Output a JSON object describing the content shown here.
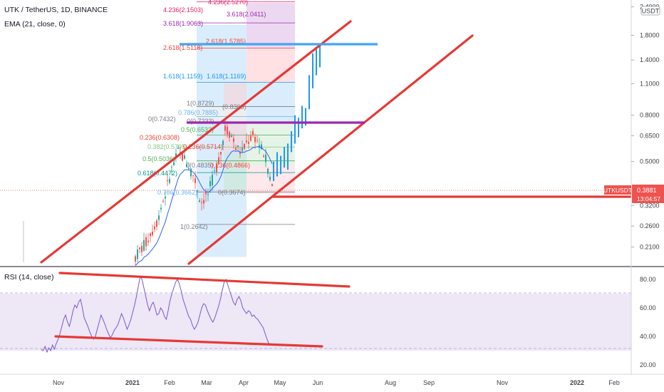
{
  "header": {
    "symbol_line": "UTK / TetherUS, 1D, BINANCE",
    "ema_line": "EMA (21, close, 0)",
    "rsi_line": "RSI (14, close)",
    "currency_badge": "USDT"
  },
  "price_badge": {
    "symbol": "UTKUSDT",
    "price": "0.3881",
    "countdown": "13:04:57",
    "color": "#ef5350"
  },
  "colors": {
    "up": "#26a69a",
    "down": "#ef5350",
    "forecast": "#2196f3",
    "trendline": "#e53935",
    "ema": "#2962ff",
    "rsi": "#7e57c2",
    "rsi_band": "#ede7f6",
    "purple_level": "#9c27b0",
    "blue_level": "#42a5f5"
  },
  "chart_data": [
    {
      "type": "candlestick",
      "title": "UTK / TetherUS, 1D, BINANCE",
      "y_scale": "log",
      "ylim": [
        0.18,
        2.5
      ],
      "x_ticks": [
        "Nov",
        "2021",
        "Feb",
        "Mar",
        "Apr",
        "May",
        "Jun",
        "Aug",
        "Sep",
        "Nov",
        "2022",
        "Feb"
      ],
      "y_ticks": [
        "2.4000",
        "1.8000",
        "1.4000",
        "1.1000",
        "0.8000",
        "0.6500",
        "0.5000",
        "0.3200",
        "0.2600",
        "0.2100"
      ],
      "last_price": 0.3881,
      "series": [
        {
          "name": "EMA (21, close, 0)",
          "kind": "ema",
          "period": 21
        },
        {
          "name": "UTKUSDT",
          "kind": "candles",
          "note": "rally from ~0.19 (Jan 2021) to ~0.87 (late Mar 2021), pullback to ~0.37 (late Apr 2021)"
        }
      ],
      "fib_labels": [
        {
          "text": "4.236(2.5270)",
          "color": "#e91e63"
        },
        {
          "text": "3.618(2.0411)",
          "color": "#9c27b0"
        },
        {
          "text": "4.236(2.1503)",
          "color": "#e91e63"
        },
        {
          "text": "3.618(1.9063)",
          "color": "#9c27b0"
        },
        {
          "text": "2.618(1.5785)",
          "color": "#f44336"
        },
        {
          "text": "2.618(1.5118)",
          "color": "#f44336"
        },
        {
          "text": "1.618(1.1159)",
          "color": "#2196f3"
        },
        {
          "text": "1.618(1.1169)",
          "color": "#2196f3"
        },
        {
          "text": "1(0.8729)",
          "color": "#787b86"
        },
        {
          "text": "(0.8303)",
          "color": "#787b86"
        },
        {
          "text": "0.786(0.7885)",
          "color": "#64b5f6"
        },
        {
          "text": "0(0.7432)",
          "color": "#787b86"
        },
        {
          "text": "0(0.7233)",
          "color": "#787b86"
        },
        {
          "text": "0.5(0.6533)",
          "color": "#4caf50"
        },
        {
          "text": "0.236(0.6308)",
          "color": "#f44336"
        },
        {
          "text": "0.382(0.5795)",
          "color": "#81c784"
        },
        {
          "text": "0.236(0.5714)",
          "color": "#f44336"
        },
        {
          "text": "0.5(0.5036)",
          "color": "#4caf50"
        },
        {
          "text": "0(0.4835)",
          "color": "#787b86"
        },
        {
          "text": "0.236(0.4866)",
          "color": "#f44336"
        },
        {
          "text": "0.618(0.4472)",
          "color": "#009688"
        },
        {
          "text": "0.786(0.3662)",
          "color": "#64b5f6"
        },
        {
          "text": "0(0.3674)",
          "color": "#787b86"
        },
        {
          "text": "1(0.2642)",
          "color": "#787b86"
        }
      ]
    },
    {
      "type": "line",
      "title": "RSI (14, close)",
      "ylim": [
        15,
        88
      ],
      "y_ticks": [
        "80.00",
        "60.00",
        "40.00",
        "20.00"
      ],
      "band": [
        30,
        70
      ],
      "series": [
        {
          "name": "RSI (14, close)",
          "values": [
            31,
            30,
            33,
            29,
            32,
            30,
            34,
            31,
            35,
            38,
            42,
            47,
            52,
            55,
            50,
            47,
            52,
            58,
            62,
            60,
            64,
            66,
            60,
            53,
            50,
            47,
            43,
            40,
            38,
            40,
            45,
            50,
            55,
            52,
            49,
            45,
            42,
            39,
            41,
            44,
            46,
            48,
            52,
            56,
            53,
            49,
            45,
            48,
            52,
            57,
            62,
            68,
            75,
            82,
            80,
            74,
            68,
            62,
            58,
            62,
            64,
            60,
            55,
            56,
            60,
            58,
            54,
            52,
            58,
            65,
            70,
            74,
            78,
            80,
            77,
            72,
            66,
            62,
            58,
            54,
            52,
            48,
            45,
            47,
            50,
            55,
            60,
            63,
            62,
            58,
            55,
            52,
            50,
            53,
            57,
            61,
            66,
            72,
            78,
            80,
            76,
            72,
            68,
            64,
            62,
            66,
            68,
            65,
            60,
            58,
            56,
            58,
            57,
            54,
            55,
            53,
            52,
            50,
            48,
            46,
            42,
            38,
            35,
            34
          ]
        }
      ]
    }
  ]
}
